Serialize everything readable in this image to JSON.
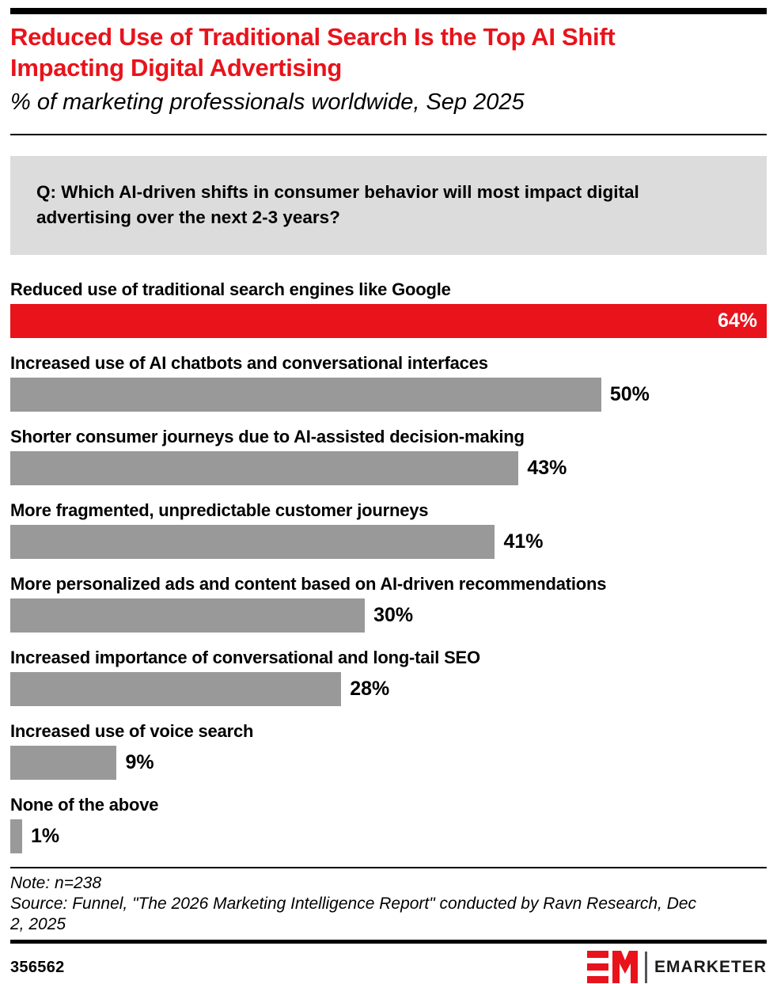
{
  "title": "Reduced Use of Traditional Search Is the Top AI Shift Impacting Digital Advertising",
  "subtitle": "% of marketing professionals worldwide, Sep 2025",
  "question": "Q: Which AI-driven shifts in consumer behavior will most impact digital advertising over the next 2-3 years?",
  "chart_data": {
    "type": "bar",
    "orientation": "horizontal",
    "title": "Reduced Use of Traditional Search Is the Top AI Shift Impacting Digital Advertising",
    "subtitle": "% of marketing professionals worldwide, Sep 2025",
    "categories": [
      "Reduced use of traditional search engines like Google",
      "Increased use of AI chatbots and conversational interfaces",
      "Shorter consumer journeys due to AI-assisted decision-making",
      "More fragmented, unpredictable customer journeys",
      "More personalized ads and content based on AI-driven recommendations",
      "Increased importance of conversational and long-tail SEO",
      "Increased use of voice search",
      "None of the above"
    ],
    "values": [
      64,
      50,
      43,
      41,
      30,
      28,
      9,
      1
    ],
    "value_labels": [
      "64%",
      "50%",
      "43%",
      "41%",
      "30%",
      "28%",
      "9%",
      "1%"
    ],
    "xlim": [
      0,
      64
    ],
    "grid": false,
    "legend": false,
    "highlight_index": 0,
    "value_label_inside_index": 0,
    "highlight_color": "#E8131B",
    "bar_color": "#999999"
  },
  "footer": {
    "note": "Note: n=238",
    "source": "Source: Funnel, \"The 2026 Marketing Intelligence Report\" conducted by Ravn Research, Dec 2, 2025",
    "chart_id": "356562",
    "brand_name": "EMARKETER"
  },
  "colors": {
    "accent_red": "#E8131B",
    "bar_gray": "#999999",
    "question_box_bg": "#DCDCDC",
    "rule_black": "#000000",
    "value_text_on_bar": "#ffffff"
  }
}
